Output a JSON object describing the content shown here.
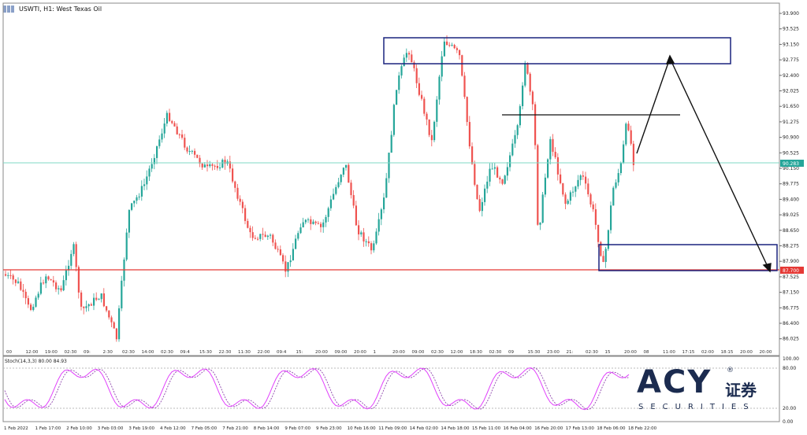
{
  "header": {
    "symbol_label": "USWTI, H1: West Texas Oil"
  },
  "price_scale": [
    "93.900",
    "93.525",
    "93.150",
    "92.775",
    "92.400",
    "92.025",
    "91.650",
    "91.275",
    "90.900",
    "90.525",
    "90.150",
    "89.775",
    "89.400",
    "89.025",
    "88.650",
    "88.275",
    "87.900",
    "87.525",
    "87.150",
    "86.775",
    "86.400",
    "86.025"
  ],
  "current_price_tag": "90.283",
  "support_price_tag": "87.700",
  "time_axis": [
    "1 Feb 2022",
    "1 Feb 17:00",
    "2 Feb 10:00",
    "3 Feb 03:00",
    "3 Feb 19:00",
    "4 Feb 12:00",
    "7 Feb 05:00",
    "7 Feb 21:00",
    "8 Feb 14:00",
    "9 Feb 07:00",
    "9 Feb 23:00",
    "10 Feb 16:00",
    "11 Feb 09:00",
    "14 Feb 02:00",
    "14 Feb 18:00",
    "15 Feb 11:00",
    "16 Feb 04:00",
    "16 Feb 20:00",
    "17 Feb 13:00",
    "18 Feb 06:00",
    "18 Feb 22:00"
  ],
  "session_labels": [
    "00",
    "12:00",
    "19:00",
    "02:30",
    "09:",
    "2:30",
    "02:30",
    "14:00",
    "02:30",
    "09:4",
    "15:30",
    "22:30",
    "11:30",
    "22:00",
    "09:4",
    "15:",
    "20:00",
    "09:00",
    "20:00",
    "1",
    "20:00",
    "09:00",
    "02:30",
    "12:00",
    "18:30",
    "02:30",
    "09",
    "15:30",
    "23:00",
    "21:",
    "02:30",
    "15",
    "20:00",
    "08",
    "11:00",
    "17:15",
    "02:00",
    "18:15",
    "20:00",
    "20:00"
  ],
  "stoch": {
    "title": "Stoch(14,3,3) 80.00 84.93",
    "levels": [
      "100.00",
      "80.00",
      "20.00",
      "0.00"
    ]
  },
  "colors": {
    "bull": "#26a69a",
    "bear": "#ef5350",
    "support": "#e53935",
    "current": "#7fd8c4",
    "box": "#1a237e",
    "stoch_main": "#e040fb",
    "stoch_signal": "#8e44ad"
  },
  "logo": {
    "main": "ACY",
    "chinese": "证券",
    "sub": "SECURITIES",
    "reg": "®"
  }
}
